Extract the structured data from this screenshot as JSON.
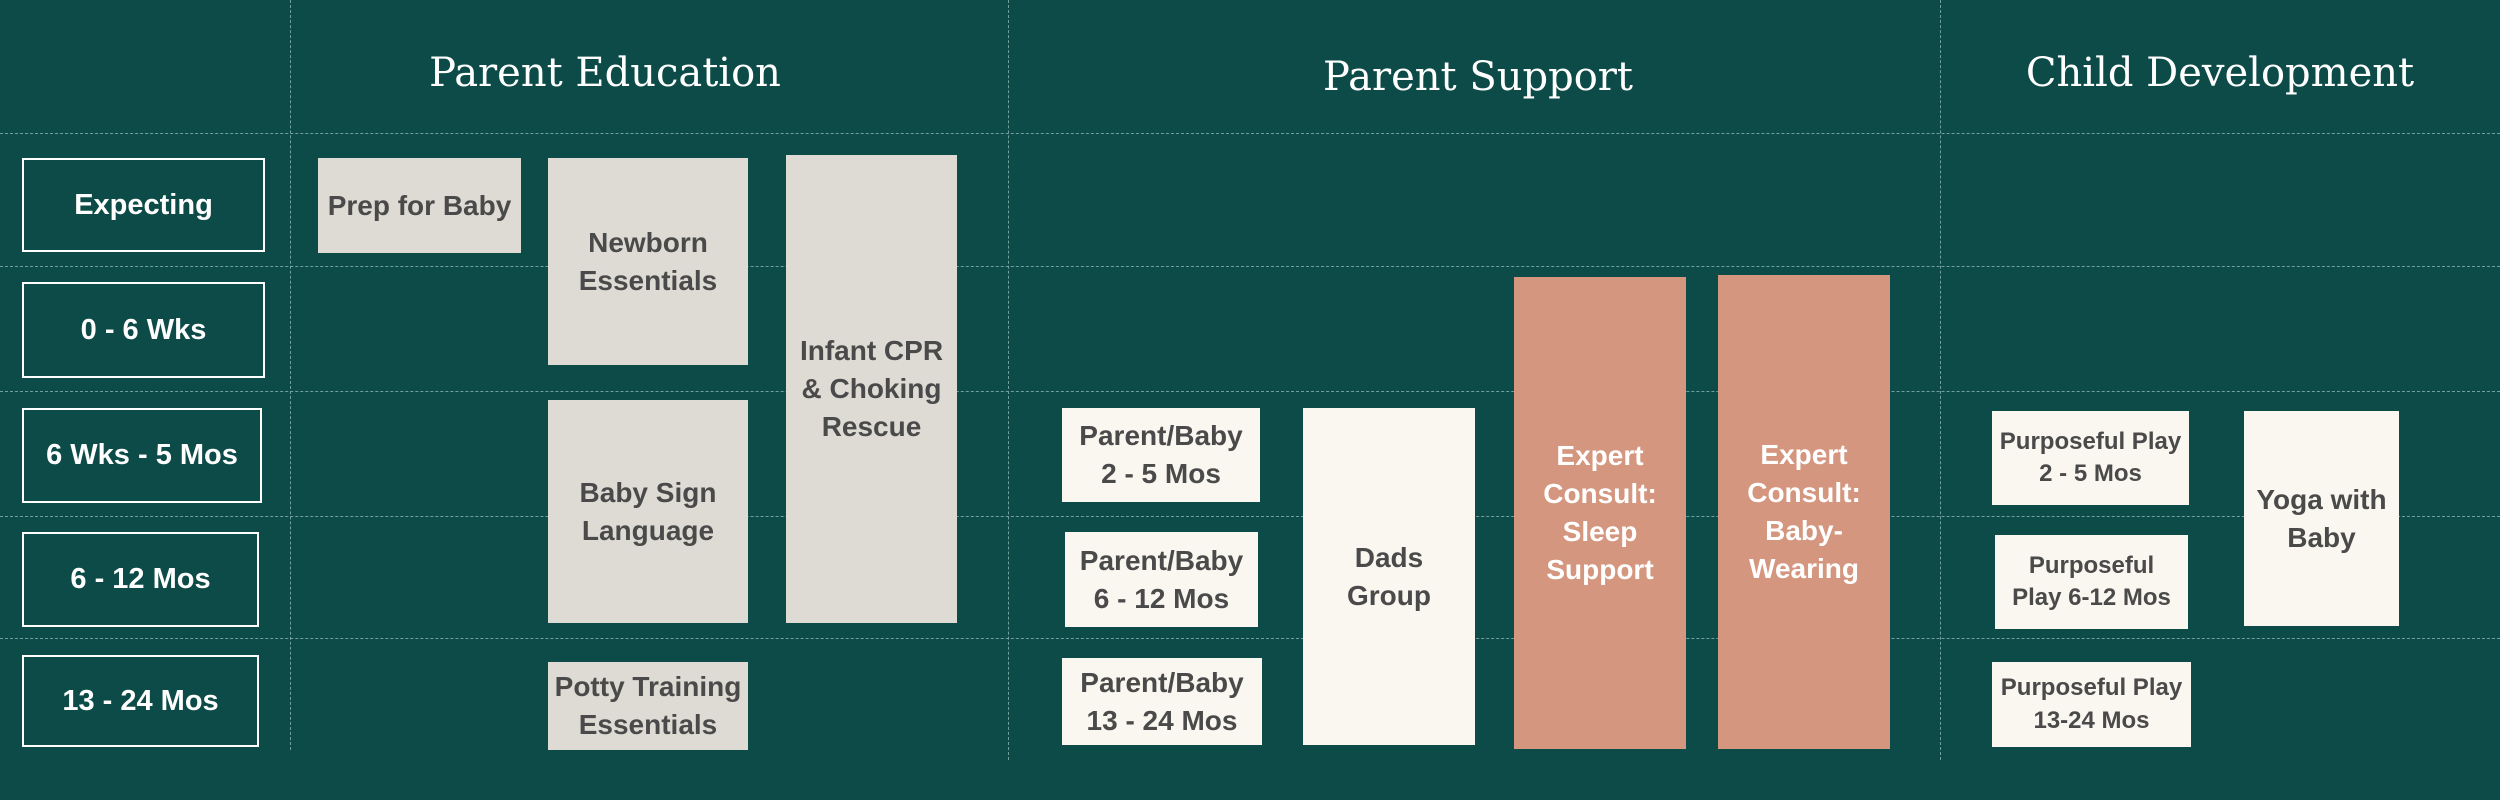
{
  "columns": {
    "parent_education": "Parent Education",
    "parent_support": "Parent Support",
    "child_development": "Child Development"
  },
  "rows": {
    "expecting": "Expecting",
    "r0_6w": "0 - 6 Wks",
    "r6w_5m": "6 Wks - 5 Mos",
    "r6_12m": "6 - 12 Mos",
    "r13_24m": "13 - 24 Mos"
  },
  "programs": {
    "prep_for_baby": "Prep for Baby",
    "newborn_essentials": "Newborn Essentials",
    "infant_cpr": "Infant CPR & Choking Rescue",
    "baby_sign_language": "Baby Sign Language",
    "potty_training": "Potty Training Essentials",
    "parent_baby_2_5": "Parent/Baby 2 - 5 Mos",
    "parent_baby_6_12": "Parent/Baby 6 - 12 Mos",
    "parent_baby_13_24": "Parent/Baby 13 - 24 Mos",
    "dads_group": "Dads Group",
    "expert_sleep": "Expert Consult: Sleep Support",
    "expert_babywearing": "Expert Consult: Baby-Wearing",
    "play_2_5": "Purposeful Play 2 - 5 Mos",
    "play_6_12": "Purposeful Play 6-12 Mos",
    "play_13_24": "Purposeful Play 13-24 Mos",
    "yoga_with_baby": "Yoga with Baby"
  },
  "colors": {
    "background": "#0c4b47",
    "parent_education_box": "#dddbd4",
    "support_box": "#faf7f0",
    "expert_box": "#d4967e"
  }
}
